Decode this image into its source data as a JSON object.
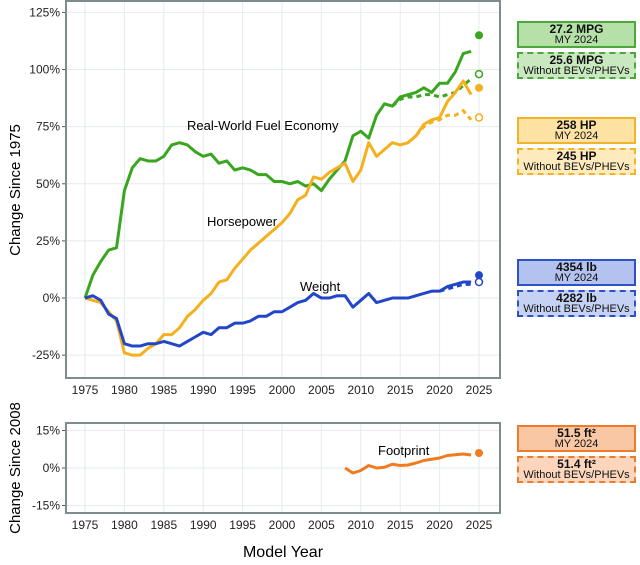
{
  "chart_data": [
    {
      "type": "line",
      "ylabel": "Change Since 1975",
      "xlabel": "Model Year",
      "xlim": [
        1973,
        2028
      ],
      "ylim": [
        -35,
        130
      ],
      "xticks": [
        "1975",
        "1980",
        "1985",
        "1990",
        "1995",
        "2000",
        "2005",
        "2010",
        "2015",
        "2020",
        "2025"
      ],
      "yticks": [
        {
          "v": 125,
          "label": "125%"
        },
        {
          "v": 100,
          "label": "100%"
        },
        {
          "v": 75,
          "label": "75%"
        },
        {
          "v": 50,
          "label": "50%"
        },
        {
          "v": 25,
          "label": "25%"
        },
        {
          "v": 0,
          "label": "0%"
        },
        {
          "v": -25,
          "label": "-25%"
        }
      ],
      "grid": true,
      "series": [
        {
          "name": "Real-World Fuel Economy",
          "color": "#3aa61f",
          "x0": 1975,
          "values": [
            0,
            10,
            16,
            21,
            22,
            47,
            57,
            61,
            60,
            60,
            62,
            67,
            68,
            67,
            64,
            62,
            63,
            59,
            60,
            56,
            57,
            56,
            54,
            54,
            51,
            51,
            50,
            51,
            49,
            50,
            47,
            52,
            56,
            60,
            71,
            73,
            70,
            80,
            85,
            84,
            88,
            89,
            90,
            92,
            90,
            94,
            94,
            99,
            107,
            108
          ],
          "dashed_x0": 2014,
          "dashed_values": [
            84,
            87,
            88,
            88,
            89,
            89,
            88,
            89,
            90,
            93,
            96
          ],
          "point_all": 115,
          "point_no_ev": 98
        },
        {
          "name": "Horsepower",
          "color": "#f5b01e",
          "x0": 1975,
          "values": [
            0,
            -1,
            -2,
            -6,
            -10,
            -24,
            -25,
            -25,
            -22,
            -20,
            -16,
            -16,
            -13,
            -8,
            -5,
            -1,
            2,
            7,
            8,
            13,
            17,
            21,
            24,
            27,
            30,
            33,
            37,
            43,
            45,
            53,
            52,
            55,
            57,
            59,
            51,
            56,
            68,
            62,
            65,
            68,
            67,
            68,
            71,
            76,
            78,
            79,
            86,
            90,
            95,
            89
          ],
          "dashed_x0": 2017,
          "dashed_values": [
            71,
            75,
            77,
            78,
            80,
            80,
            82,
            78
          ],
          "point_all": 92,
          "point_no_ev": 79
        },
        {
          "name": "Weight",
          "color": "#2147c8",
          "x0": 1975,
          "values": [
            0,
            1,
            -1,
            -7,
            -9,
            -20,
            -21,
            -21,
            -20,
            -20,
            -19,
            -20,
            -21,
            -19,
            -17,
            -15,
            -16,
            -13,
            -13,
            -11,
            -11,
            -10,
            -8,
            -8,
            -6,
            -6,
            -4,
            -2,
            -1,
            2,
            0,
            0,
            1,
            1,
            -4,
            -1,
            2,
            -2,
            -1,
            0,
            0,
            0,
            1,
            2,
            3,
            3,
            5,
            6,
            7,
            7
          ],
          "dashed_x0": 2020,
          "dashed_values": [
            3,
            4,
            5,
            6,
            6
          ],
          "point_all": 10,
          "point_no_ev": 7
        }
      ]
    },
    {
      "type": "line",
      "ylabel": "Change Since 2008",
      "xlabel": "Model Year",
      "xlim": [
        1973,
        2028
      ],
      "ylim": [
        -18,
        18
      ],
      "xticks": [
        "1975",
        "1980",
        "1985",
        "1990",
        "1995",
        "2000",
        "2005",
        "2010",
        "2015",
        "2020",
        "2025"
      ],
      "yticks": [
        {
          "v": 15,
          "label": "15%"
        },
        {
          "v": 0,
          "label": "0%"
        },
        {
          "v": -15,
          "label": "-15%"
        }
      ],
      "grid": true,
      "series": [
        {
          "name": "Footprint",
          "color": "#f07a1e",
          "x0": 2008,
          "values": [
            0,
            -2,
            -1,
            1,
            0,
            0.3,
            1.5,
            1,
            1.2,
            2,
            3,
            3.5,
            4,
            5,
            5.3,
            5.6,
            5.2
          ],
          "point_all": 6
        }
      ]
    }
  ],
  "boxes": {
    "mpg": {
      "all": "27.2 MPG",
      "all_sub": "MY 2024",
      "noev": "25.6 MPG",
      "noev_sub": "Without BEVs/PHEVs"
    },
    "hp": {
      "all": "258 HP",
      "all_sub": "MY 2024",
      "noev": "245 HP",
      "noev_sub": "Without BEVs/PHEVs"
    },
    "wt": {
      "all": "4354 lb",
      "all_sub": "MY 2024",
      "noev": "4282 lb",
      "noev_sub": "Without BEVs/PHEVs"
    },
    "fp": {
      "all": "51.5 ft²",
      "all_sub": "MY 2024",
      "noev": "51.4 ft²",
      "noev_sub": "Without BEVs/PHEVs"
    }
  }
}
